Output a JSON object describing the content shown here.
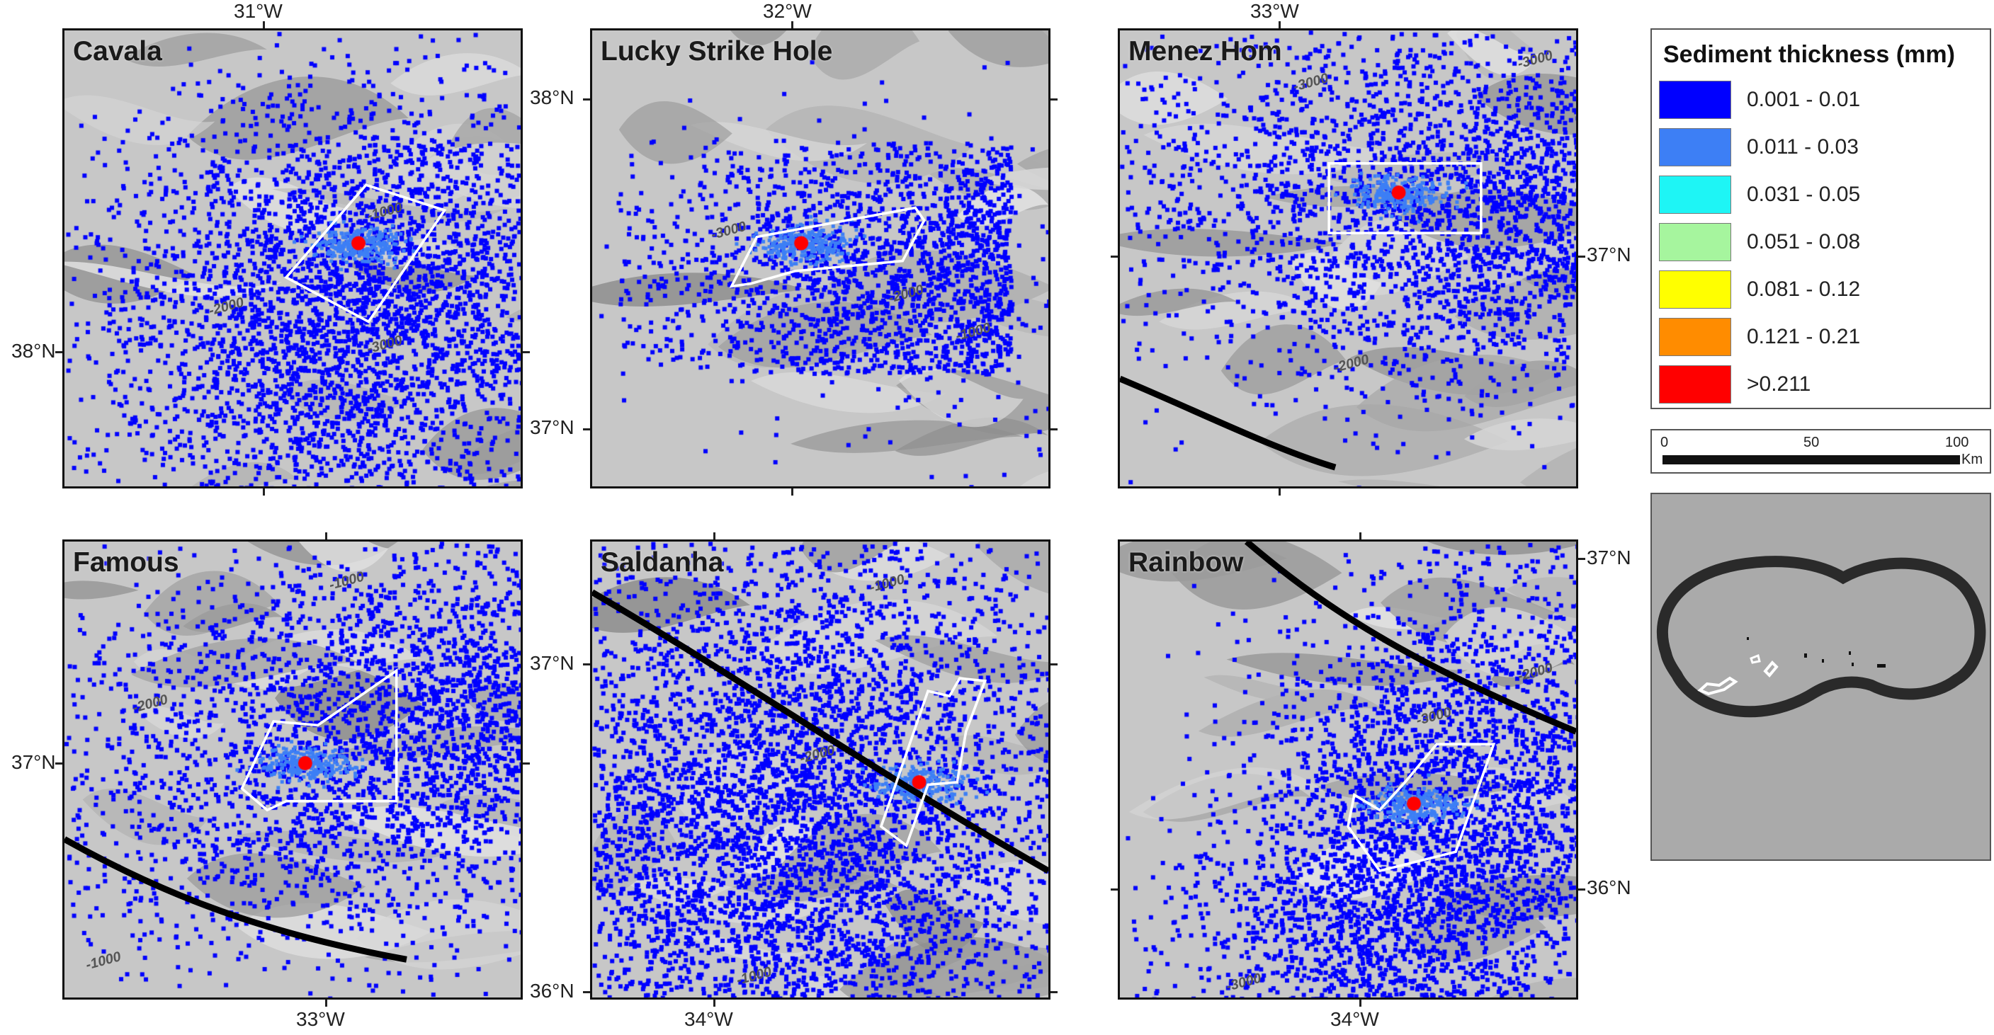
{
  "panels": [
    {
      "id": "cavala",
      "title": "Cavala",
      "lon_labels": [
        "31°W"
      ],
      "lat_labels": [
        "38°N"
      ],
      "contours": [
        "-1000",
        "-2000",
        "-3000"
      ]
    },
    {
      "id": "lucky",
      "title": "Lucky Strike Hole",
      "lon_labels": [
        "32°W"
      ],
      "lat_labels": [
        "38°N",
        "37°N"
      ],
      "contours": [
        "-3000",
        "-2000",
        "-1000"
      ]
    },
    {
      "id": "menez",
      "title": "Menez Hom",
      "lon_labels": [
        "33°W"
      ],
      "lat_labels": [
        "37°N"
      ],
      "contours": [
        "-3000",
        "-3000",
        "-2000"
      ]
    },
    {
      "id": "famous",
      "title": "Famous",
      "lon_labels": [
        "33°W"
      ],
      "lat_labels": [
        "37°N"
      ],
      "contours": [
        "-1000",
        "-2000",
        "-1000"
      ]
    },
    {
      "id": "saldanha",
      "title": "Saldanha",
      "lon_labels": [
        "34°W"
      ],
      "lat_labels": [
        "37°N",
        "36°N"
      ],
      "contours": [
        "-1000",
        "-2000",
        "-1000"
      ]
    },
    {
      "id": "rainbow",
      "title": "Rainbow",
      "lon_labels": [
        "34°W"
      ],
      "lat_labels": [
        "37°N",
        "36°N"
      ],
      "contours": [
        "-3000",
        "-2000",
        "-3000"
      ]
    }
  ],
  "legend": {
    "title": "Sediment thickness (mm)",
    "items": [
      {
        "label": "0.001 - 0.01",
        "color": "#0000ff"
      },
      {
        "label": "0.011 - 0.03",
        "color": "#3d7ff5"
      },
      {
        "label": "0.031 - 0.05",
        "color": "#1ef5f5"
      },
      {
        "label": "0.051 - 0.08",
        "color": "#a6f59e"
      },
      {
        "label": "0.081 - 0.12",
        "color": "#ffff00"
      },
      {
        "label": "0.121 - 0.21",
        "color": "#ff8c00"
      },
      {
        "label": ">0.211",
        "color": "#ff0000"
      }
    ]
  },
  "scale": {
    "ticks": [
      "0",
      "50",
      "100"
    ],
    "unit": "Km"
  },
  "colors": {
    "plume": "#0000ff",
    "plume_mid": "#3d7ff5",
    "core": "#ff0000",
    "boundary": "#ffffff",
    "eez_line": "#000000",
    "seafloor": "#c7c7c7"
  }
}
